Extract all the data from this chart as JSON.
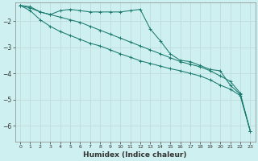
{
  "xlabel": "Humidex (Indice chaleur)",
  "bg_color": "#cff0f0",
  "grid_color": "#c0dede",
  "line_color": "#1a7a6e",
  "xlim": [
    -0.5,
    23.5
  ],
  "ylim": [
    -6.6,
    -1.3
  ],
  "yticks": [
    -6,
    -5,
    -4,
    -3,
    -2
  ],
  "xticks": [
    0,
    1,
    2,
    3,
    4,
    5,
    6,
    7,
    8,
    9,
    10,
    11,
    12,
    13,
    14,
    15,
    16,
    17,
    18,
    19,
    20,
    21,
    22,
    23
  ],
  "s1x": [
    0,
    1,
    2,
    3,
    4,
    5,
    6,
    7,
    8,
    9,
    10,
    11,
    12,
    13,
    14,
    15,
    16,
    17,
    18,
    19,
    20,
    21,
    22,
    23
  ],
  "s1y": [
    -1.4,
    -1.45,
    -1.65,
    -1.75,
    -1.6,
    -1.55,
    -1.6,
    -1.65,
    -1.65,
    -1.65,
    -1.65,
    -1.6,
    -1.55,
    -2.3,
    -2.75,
    -3.25,
    -3.5,
    -3.55,
    -3.7,
    -3.85,
    -3.9,
    -4.45,
    -4.8,
    -6.2
  ],
  "s2x": [
    0,
    1,
    2,
    3,
    4,
    5,
    6,
    7,
    8,
    9,
    10,
    11,
    12,
    13,
    14,
    15,
    16,
    17,
    18,
    19,
    20,
    21,
    22,
    23
  ],
  "s2y": [
    -1.4,
    -1.5,
    -1.65,
    -1.75,
    -1.85,
    -1.95,
    -2.05,
    -2.2,
    -2.35,
    -2.5,
    -2.65,
    -2.8,
    -2.95,
    -3.1,
    -3.25,
    -3.4,
    -3.55,
    -3.65,
    -3.75,
    -3.9,
    -4.1,
    -4.3,
    -4.75,
    -6.2
  ],
  "s3x": [
    0,
    1,
    2,
    3,
    4,
    5,
    6,
    7,
    8,
    9,
    10,
    11,
    12,
    13,
    14,
    15,
    16,
    17,
    18,
    19,
    20,
    21,
    22,
    23
  ],
  "s3y": [
    -1.4,
    -1.6,
    -1.95,
    -2.2,
    -2.4,
    -2.55,
    -2.7,
    -2.85,
    -2.95,
    -3.1,
    -3.25,
    -3.38,
    -3.52,
    -3.62,
    -3.72,
    -3.82,
    -3.9,
    -4.0,
    -4.1,
    -4.25,
    -4.45,
    -4.6,
    -4.85,
    -6.2
  ]
}
